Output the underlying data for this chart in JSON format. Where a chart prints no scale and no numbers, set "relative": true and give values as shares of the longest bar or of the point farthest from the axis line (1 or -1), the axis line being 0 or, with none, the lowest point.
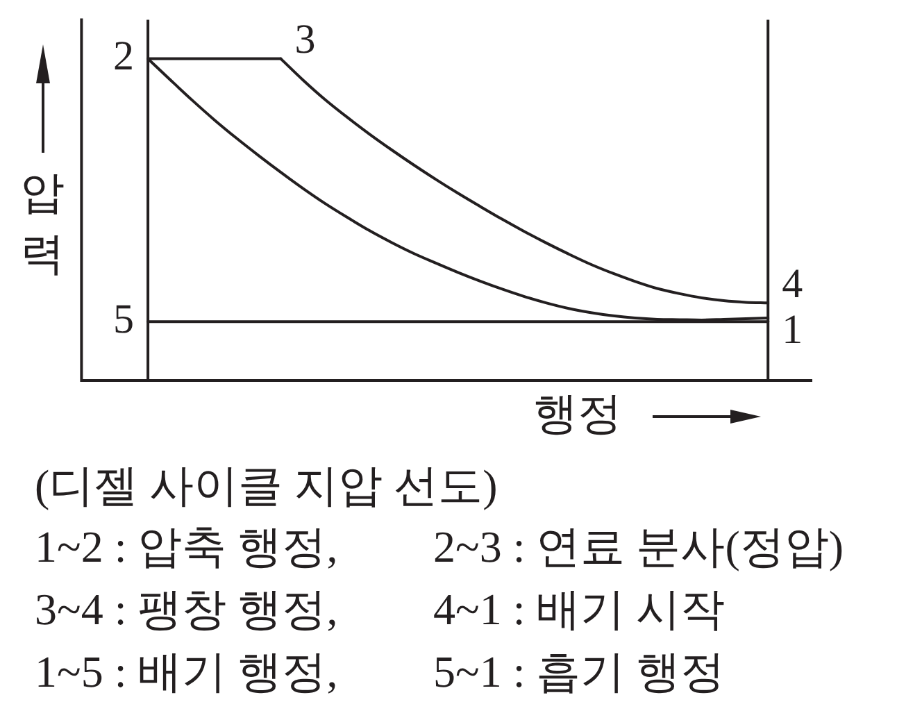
{
  "chart_data": {
    "type": "line",
    "relative": true,
    "title": "(디젤 사이클 지압 선도)",
    "xlabel": "행정",
    "ylabel": "압력",
    "categories": [
      null,
      null,
      null,
      null,
      null,
      null,
      null,
      null,
      null,
      null,
      null,
      null,
      null,
      null,
      null,
      null,
      null,
      null,
      null,
      null,
      null,
      null,
      null,
      null,
      null,
      null,
      null,
      null,
      null,
      null,
      null,
      null,
      null,
      null
    ],
    "series": [
      {
        "color": "#231f20",
        "values": [
          null,
          null,
          null,
          1,
          0.935,
          0.871,
          0.81,
          0.753,
          0.699,
          0.647,
          0.597,
          0.55,
          0.507,
          0.466,
          0.429,
          0.395,
          0.365,
          0.336,
          0.309,
          0.284,
          0.261,
          0.241,
          0.224,
          0.211,
          0.201,
          0.194,
          0.19,
          0.189,
          0.188,
          0.19,
          0.192,
          0.194,
          null,
          null
        ]
      },
      {
        "color": "#231f20",
        "values": [
          null,
          null,
          null,
          1,
          1,
          1,
          1,
          1,
          1,
          1,
          null,
          null,
          null,
          null,
          null,
          null,
          null,
          null,
          null,
          null,
          null,
          null,
          null,
          null,
          null,
          null,
          null,
          null,
          null,
          null,
          null,
          null,
          null,
          null
        ]
      },
      {
        "color": "#231f20",
        "values": [
          null,
          null,
          null,
          null,
          null,
          null,
          null,
          null,
          null,
          1,
          0.934,
          0.873,
          0.818,
          0.766,
          0.717,
          0.67,
          0.625,
          0.582,
          0.541,
          0.501,
          0.463,
          0.427,
          0.393,
          0.361,
          0.333,
          0.308,
          0.286,
          0.27,
          0.257,
          0.248,
          0.243,
          0.241,
          null,
          null
        ]
      },
      {
        "color": "#231f20",
        "values": [
          null,
          null,
          null,
          0.183,
          0.183,
          0.183,
          0.183,
          0.183,
          0.183,
          0.183,
          0.183,
          0.183,
          0.183,
          0.183,
          0.183,
          0.183,
          0.183,
          0.183,
          0.183,
          0.183,
          0.183,
          0.183,
          0.183,
          0.183,
          0.183,
          0.183,
          0.183,
          0.183,
          0.183,
          0.183,
          0.183,
          0.183,
          null,
          null
        ]
      }
    ],
    "annotations": [
      "2",
      "3",
      "4",
      "1",
      "5",
      "1~2 : 압축 행정,",
      "2~3 : 연료 분사(정압)",
      "3~4 : 팽창 행정,",
      "4~1 : 배기 시작",
      "1~5 : 배기 행정,",
      "5~1 : 흡기 행정"
    ]
  }
}
